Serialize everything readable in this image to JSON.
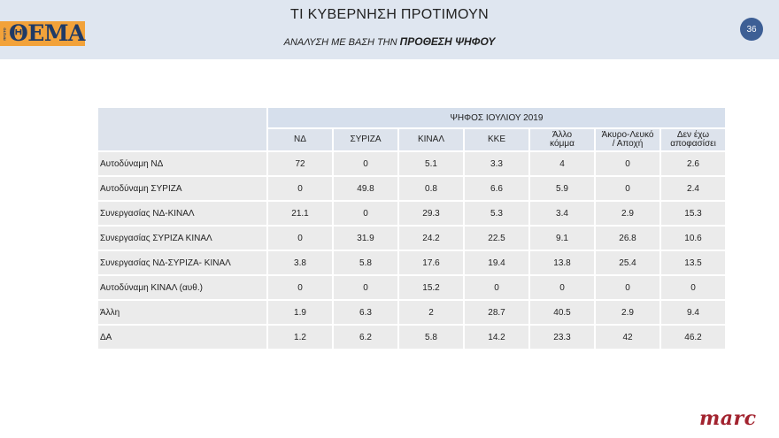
{
  "header": {
    "title": "ΤΙ ΚΥΒΕΡΝΗΣΗ ΠΡΟΤΙΜΟΥΝ",
    "subtitle_prefix": "ΑΝΑΛΥΣΗ ΜΕ ΒΑΣΗ ΤΗΝ ",
    "subtitle_emph": "ΠΡΟΘΕΣΗ ΨΗΦΟΥ",
    "page_number": "36",
    "logo_text": "ΘΕΜΑ",
    "logo_side_text": "ΠΡΩΤΟ"
  },
  "table": {
    "group_header": "ΨΗΦΟΣ ΙΟΥΛΙΟΥ 2019",
    "columns": [
      [
        "ΝΔ"
      ],
      [
        "ΣΥΡΙΖΑ"
      ],
      [
        "ΚΙΝΑΛ"
      ],
      [
        "ΚΚΕ"
      ],
      [
        "Άλλο",
        "κόμμα"
      ],
      [
        "Άκυρο-Λευκό",
        "/ Αποχή"
      ],
      [
        "Δεν έχω",
        "αποφασίσει"
      ]
    ],
    "rows": [
      {
        "label": "Αυτοδύναμη ΝΔ",
        "values": [
          "72",
          "0",
          "5.1",
          "3.3",
          "4",
          "0",
          "2.6"
        ]
      },
      {
        "label": "Αυτοδύναμη ΣΥΡΙΖΑ",
        "values": [
          "0",
          "49.8",
          "0.8",
          "6.6",
          "5.9",
          "0",
          "2.4"
        ]
      },
      {
        "label": "Συνεργασίας ΝΔ-ΚΙΝΑΛ",
        "values": [
          "21.1",
          "0",
          "29.3",
          "5.3",
          "3.4",
          "2.9",
          "15.3"
        ]
      },
      {
        "label": "Συνεργασίας ΣΥΡΙΖΑ ΚΙΝΑΛ",
        "values": [
          "0",
          "31.9",
          "24.2",
          "22.5",
          "9.1",
          "26.8",
          "10.6"
        ]
      },
      {
        "label": "Συνεργασίας ΝΔ-ΣΥΡΙΖΑ- ΚΙΝΑΛ",
        "values": [
          "3.8",
          "5.8",
          "17.6",
          "19.4",
          "13.8",
          "25.4",
          "13.5"
        ]
      },
      {
        "label": "Αυτοδύναμη ΚΙΝΑΛ (αυθ.)",
        "values": [
          "0",
          "0",
          "15.2",
          "0",
          "0",
          "0",
          "0"
        ]
      },
      {
        "label": "Άλλη",
        "values": [
          "1.9",
          "6.3",
          "2",
          "28.7",
          "40.5",
          "2.9",
          "9.4"
        ]
      },
      {
        "label": "ΔΑ",
        "values": [
          "1.2",
          "6.2",
          "5.8",
          "14.2",
          "23.3",
          "42",
          "46.2"
        ]
      }
    ]
  },
  "footer": {
    "brand": "marc"
  }
}
